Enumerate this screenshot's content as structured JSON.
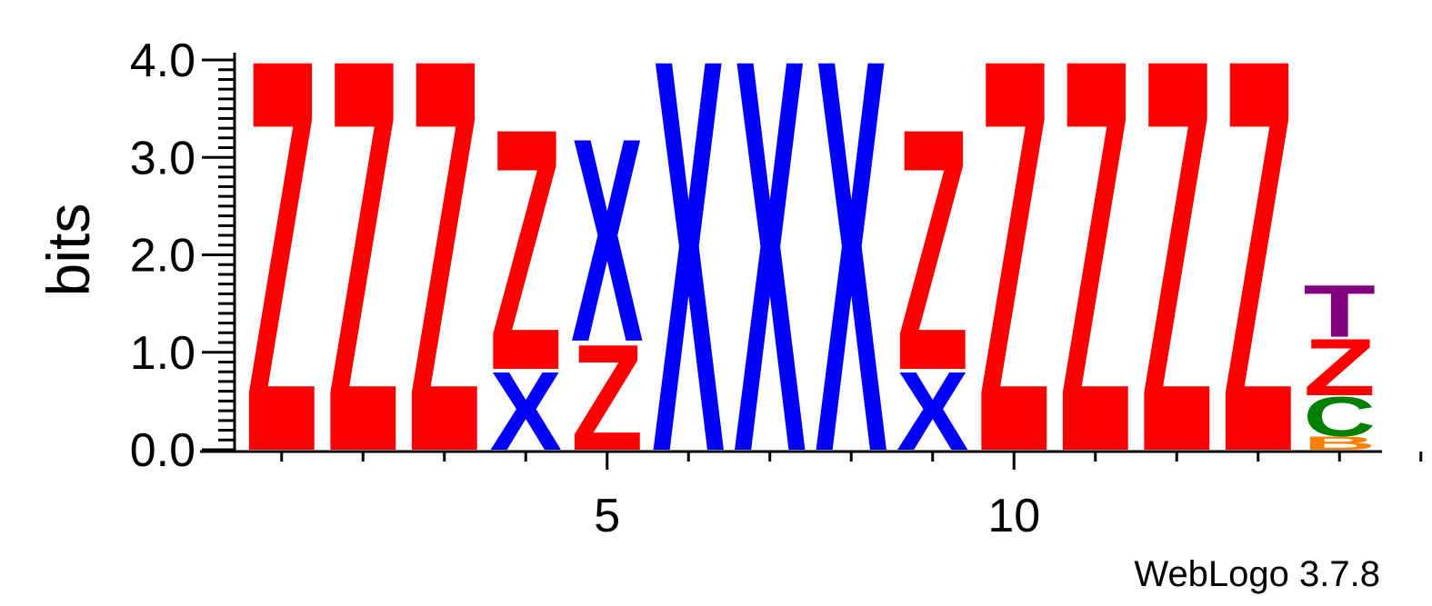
{
  "chart_data": {
    "type": "sequence-logo",
    "ylabel": "bits",
    "ylim": [
      0,
      4.0
    ],
    "yticks": [
      "0.0",
      "1.0",
      "2.0",
      "3.0",
      "4.0"
    ],
    "xticks": [
      {
        "position": 5,
        "label": "5"
      },
      {
        "position": 10,
        "label": "10"
      }
    ],
    "positions": [
      {
        "index": 1,
        "stack": [
          {
            "letter": "Z",
            "bits": 4.15
          }
        ]
      },
      {
        "index": 2,
        "stack": [
          {
            "letter": "Z",
            "bits": 4.15
          }
        ]
      },
      {
        "index": 3,
        "stack": [
          {
            "letter": "Z",
            "bits": 4.15
          }
        ]
      },
      {
        "index": 4,
        "stack": [
          {
            "letter": "X",
            "bits": 0.83
          },
          {
            "letter": "Z",
            "bits": 2.55
          }
        ]
      },
      {
        "index": 5,
        "stack": [
          {
            "letter": "Z",
            "bits": 1.12
          },
          {
            "letter": "X",
            "bits": 2.15
          }
        ]
      },
      {
        "index": 6,
        "stack": [
          {
            "letter": "X",
            "bits": 4.15
          }
        ]
      },
      {
        "index": 7,
        "stack": [
          {
            "letter": "X",
            "bits": 4.15
          }
        ]
      },
      {
        "index": 8,
        "stack": [
          {
            "letter": "X",
            "bits": 4.15
          }
        ]
      },
      {
        "index": 9,
        "stack": [
          {
            "letter": "X",
            "bits": 0.83
          },
          {
            "letter": "Z",
            "bits": 2.55
          }
        ]
      },
      {
        "index": 10,
        "stack": [
          {
            "letter": "Z",
            "bits": 4.15
          }
        ]
      },
      {
        "index": 11,
        "stack": [
          {
            "letter": "Z",
            "bits": 4.15
          }
        ]
      },
      {
        "index": 12,
        "stack": [
          {
            "letter": "Z",
            "bits": 4.15
          }
        ]
      },
      {
        "index": 13,
        "stack": [
          {
            "letter": "Z",
            "bits": 4.15
          }
        ]
      },
      {
        "index": 14,
        "stack": [
          {
            "letter": "B",
            "bits": 0.14
          },
          {
            "letter": "C",
            "bits": 0.42
          },
          {
            "letter": "Z",
            "bits": 0.6
          },
          {
            "letter": "T",
            "bits": 0.55
          }
        ]
      },
      {
        "index": 15,
        "stack": []
      }
    ],
    "colors": {
      "Z": "#ff0000",
      "X": "#0000ff",
      "T": "#800080",
      "C": "#008000",
      "B": "#ff8000"
    },
    "footer": "WebLogo 3.7.8"
  }
}
